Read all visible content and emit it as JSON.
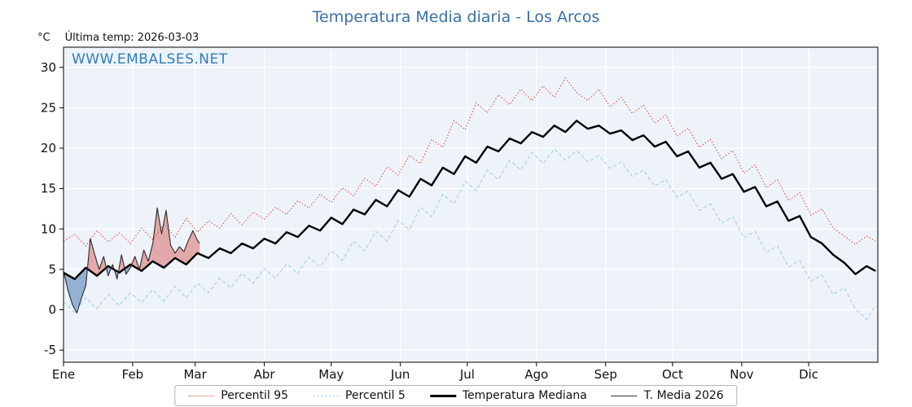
{
  "title": "Temperatura Media diaria - Los Arcos",
  "watermark": "WWW.EMBALSES.NET",
  "header": {
    "unit_label": "°C",
    "last_temp_label": "Última temp: 2026-03-03"
  },
  "chart_data": {
    "type": "line",
    "title": "Temperatura Media diaria - Los Arcos",
    "xlabel": "",
    "ylabel": "°C",
    "ylim": [
      -6.5,
      32.5
    ],
    "yticks": [
      -5,
      0,
      5,
      10,
      15,
      20,
      25,
      30
    ],
    "grid": true,
    "days_total": 365,
    "month_labels": [
      "Ene",
      "Feb",
      "Mar",
      "Abr",
      "May",
      "Jun",
      "Jul",
      "Ago",
      "Sep",
      "Oct",
      "Nov",
      "Dic"
    ],
    "month_start_days": [
      0,
      31,
      59,
      90,
      120,
      151,
      181,
      212,
      243,
      273,
      304,
      334
    ],
    "colors": {
      "p95": "#d9534f",
      "p5": "#a6d3e8",
      "median": "#000000",
      "t2026": "#2a2a2a",
      "fill_above": "rgba(217,106,106,0.55)",
      "fill_below": "rgba(100,140,190,0.65)",
      "plot_bg": "#eef3f9",
      "gridline": "#ffffff",
      "title_blue": "#3a6fa8",
      "watermark_blue": "#2e7ebd"
    },
    "series": [
      {
        "name": "Percentil 95",
        "style": "dotted",
        "width": 1.2,
        "points": [
          [
            0,
            8.5
          ],
          [
            5,
            9.3
          ],
          [
            10,
            7.9
          ],
          [
            15,
            9.8
          ],
          [
            20,
            8.4
          ],
          [
            25,
            9.5
          ],
          [
            30,
            8.2
          ],
          [
            35,
            10.1
          ],
          [
            40,
            8.7
          ],
          [
            45,
            10.6
          ],
          [
            50,
            9.0
          ],
          [
            55,
            11.3
          ],
          [
            60,
            9.6
          ],
          [
            65,
            11.0
          ],
          [
            70,
            10.1
          ],
          [
            75,
            11.9
          ],
          [
            80,
            10.5
          ],
          [
            85,
            12.1
          ],
          [
            90,
            11.2
          ],
          [
            95,
            12.7
          ],
          [
            100,
            11.8
          ],
          [
            105,
            13.5
          ],
          [
            110,
            12.6
          ],
          [
            115,
            14.3
          ],
          [
            120,
            13.3
          ],
          [
            125,
            15.1
          ],
          [
            130,
            14.1
          ],
          [
            135,
            16.3
          ],
          [
            140,
            15.3
          ],
          [
            145,
            17.7
          ],
          [
            150,
            16.7
          ],
          [
            155,
            19.1
          ],
          [
            160,
            18.1
          ],
          [
            165,
            21.1
          ],
          [
            170,
            20.1
          ],
          [
            175,
            23.4
          ],
          [
            180,
            22.3
          ],
          [
            185,
            25.6
          ],
          [
            190,
            24.4
          ],
          [
            195,
            26.6
          ],
          [
            200,
            25.4
          ],
          [
            205,
            27.3
          ],
          [
            210,
            25.9
          ],
          [
            215,
            27.7
          ],
          [
            220,
            26.3
          ],
          [
            225,
            28.7
          ],
          [
            230,
            26.9
          ],
          [
            235,
            25.9
          ],
          [
            240,
            27.3
          ],
          [
            245,
            25.1
          ],
          [
            250,
            26.3
          ],
          [
            255,
            24.3
          ],
          [
            260,
            25.3
          ],
          [
            265,
            23.1
          ],
          [
            270,
            24.1
          ],
          [
            275,
            21.5
          ],
          [
            280,
            22.5
          ],
          [
            285,
            20.1
          ],
          [
            290,
            21.1
          ],
          [
            295,
            18.7
          ],
          [
            300,
            19.7
          ],
          [
            305,
            16.9
          ],
          [
            310,
            17.9
          ],
          [
            315,
            15.1
          ],
          [
            320,
            16.1
          ],
          [
            325,
            13.5
          ],
          [
            330,
            14.5
          ],
          [
            335,
            11.7
          ],
          [
            340,
            12.5
          ],
          [
            345,
            10.1
          ],
          [
            350,
            9.1
          ],
          [
            355,
            8.1
          ],
          [
            360,
            9.1
          ],
          [
            364,
            8.5
          ]
        ]
      },
      {
        "name": "Percentil 5",
        "style": "dashed",
        "width": 1.2,
        "points": [
          [
            0,
            1.0
          ],
          [
            5,
            -0.3
          ],
          [
            10,
            1.5
          ],
          [
            15,
            0.1
          ],
          [
            20,
            1.9
          ],
          [
            25,
            0.5
          ],
          [
            30,
            2.1
          ],
          [
            35,
            0.9
          ],
          [
            40,
            2.5
          ],
          [
            45,
            1.1
          ],
          [
            50,
            2.9
          ],
          [
            55,
            1.5
          ],
          [
            60,
            3.3
          ],
          [
            65,
            2.1
          ],
          [
            70,
            3.9
          ],
          [
            75,
            2.7
          ],
          [
            80,
            4.5
          ],
          [
            85,
            3.3
          ],
          [
            90,
            5.1
          ],
          [
            95,
            3.9
          ],
          [
            100,
            5.7
          ],
          [
            105,
            4.5
          ],
          [
            110,
            6.5
          ],
          [
            115,
            5.3
          ],
          [
            120,
            7.3
          ],
          [
            125,
            6.1
          ],
          [
            130,
            8.5
          ],
          [
            135,
            7.3
          ],
          [
            140,
            9.7
          ],
          [
            145,
            8.5
          ],
          [
            150,
            11.1
          ],
          [
            155,
            9.9
          ],
          [
            160,
            12.7
          ],
          [
            165,
            11.5
          ],
          [
            170,
            14.3
          ],
          [
            175,
            13.1
          ],
          [
            180,
            15.9
          ],
          [
            185,
            14.7
          ],
          [
            190,
            17.3
          ],
          [
            195,
            16.1
          ],
          [
            200,
            18.5
          ],
          [
            205,
            17.3
          ],
          [
            210,
            19.5
          ],
          [
            215,
            18.1
          ],
          [
            220,
            19.9
          ],
          [
            225,
            18.5
          ],
          [
            230,
            19.7
          ],
          [
            235,
            18.3
          ],
          [
            240,
            19.1
          ],
          [
            245,
            17.5
          ],
          [
            250,
            18.3
          ],
          [
            255,
            16.5
          ],
          [
            260,
            17.3
          ],
          [
            265,
            15.3
          ],
          [
            270,
            16.1
          ],
          [
            275,
            13.9
          ],
          [
            280,
            14.7
          ],
          [
            285,
            12.3
          ],
          [
            290,
            13.1
          ],
          [
            295,
            10.7
          ],
          [
            300,
            11.5
          ],
          [
            305,
            8.9
          ],
          [
            310,
            9.7
          ],
          [
            315,
            7.1
          ],
          [
            320,
            7.9
          ],
          [
            325,
            5.3
          ],
          [
            330,
            6.1
          ],
          [
            335,
            3.5
          ],
          [
            340,
            4.3
          ],
          [
            345,
            1.9
          ],
          [
            350,
            2.7
          ],
          [
            355,
            0.1
          ],
          [
            360,
            -1.2
          ],
          [
            364,
            0.5
          ]
        ]
      },
      {
        "name": "Temperatura Mediana",
        "style": "solid",
        "width": 2.4,
        "points": [
          [
            0,
            4.6
          ],
          [
            5,
            3.8
          ],
          [
            10,
            5.2
          ],
          [
            15,
            4.2
          ],
          [
            20,
            5.4
          ],
          [
            25,
            4.6
          ],
          [
            30,
            5.6
          ],
          [
            35,
            4.8
          ],
          [
            40,
            6.0
          ],
          [
            45,
            5.2
          ],
          [
            50,
            6.4
          ],
          [
            55,
            5.6
          ],
          [
            60,
            7.0
          ],
          [
            65,
            6.4
          ],
          [
            70,
            7.6
          ],
          [
            75,
            7.0
          ],
          [
            80,
            8.2
          ],
          [
            85,
            7.6
          ],
          [
            90,
            8.8
          ],
          [
            95,
            8.2
          ],
          [
            100,
            9.6
          ],
          [
            105,
            9.0
          ],
          [
            110,
            10.4
          ],
          [
            115,
            9.8
          ],
          [
            120,
            11.4
          ],
          [
            125,
            10.6
          ],
          [
            130,
            12.4
          ],
          [
            135,
            11.8
          ],
          [
            140,
            13.6
          ],
          [
            145,
            12.8
          ],
          [
            150,
            14.8
          ],
          [
            155,
            14.0
          ],
          [
            160,
            16.2
          ],
          [
            165,
            15.4
          ],
          [
            170,
            17.6
          ],
          [
            175,
            16.8
          ],
          [
            180,
            19.0
          ],
          [
            185,
            18.2
          ],
          [
            190,
            20.2
          ],
          [
            195,
            19.6
          ],
          [
            200,
            21.2
          ],
          [
            205,
            20.6
          ],
          [
            210,
            22.0
          ],
          [
            215,
            21.4
          ],
          [
            220,
            22.8
          ],
          [
            225,
            22.0
          ],
          [
            230,
            23.4
          ],
          [
            235,
            22.4
          ],
          [
            240,
            22.8
          ],
          [
            245,
            21.8
          ],
          [
            250,
            22.2
          ],
          [
            255,
            21.0
          ],
          [
            260,
            21.6
          ],
          [
            265,
            20.2
          ],
          [
            270,
            20.8
          ],
          [
            275,
            19.0
          ],
          [
            280,
            19.6
          ],
          [
            285,
            17.6
          ],
          [
            290,
            18.2
          ],
          [
            295,
            16.2
          ],
          [
            300,
            16.8
          ],
          [
            305,
            14.6
          ],
          [
            310,
            15.2
          ],
          [
            315,
            12.8
          ],
          [
            320,
            13.4
          ],
          [
            325,
            11.0
          ],
          [
            330,
            11.6
          ],
          [
            335,
            9.0
          ],
          [
            340,
            8.2
          ],
          [
            345,
            6.8
          ],
          [
            350,
            5.8
          ],
          [
            355,
            4.4
          ],
          [
            360,
            5.4
          ],
          [
            364,
            4.8
          ]
        ]
      },
      {
        "name": "T. Media 2026",
        "style": "solid",
        "width": 1.1,
        "points": [
          [
            0,
            4.8
          ],
          [
            2,
            2.4
          ],
          [
            4,
            0.6
          ],
          [
            6,
            -0.4
          ],
          [
            8,
            1.4
          ],
          [
            10,
            3.0
          ],
          [
            12,
            8.8
          ],
          [
            14,
            6.8
          ],
          [
            16,
            5.0
          ],
          [
            18,
            6.6
          ],
          [
            20,
            4.2
          ],
          [
            22,
            5.6
          ],
          [
            24,
            3.8
          ],
          [
            26,
            6.8
          ],
          [
            28,
            4.4
          ],
          [
            30,
            5.2
          ],
          [
            32,
            6.6
          ],
          [
            34,
            5.0
          ],
          [
            36,
            7.4
          ],
          [
            38,
            6.0
          ],
          [
            40,
            8.2
          ],
          [
            42,
            12.6
          ],
          [
            44,
            9.4
          ],
          [
            46,
            12.3
          ],
          [
            48,
            8.0
          ],
          [
            50,
            7.0
          ],
          [
            52,
            7.8
          ],
          [
            54,
            7.2
          ],
          [
            56,
            8.6
          ],
          [
            58,
            9.8
          ],
          [
            60,
            8.6
          ],
          [
            61,
            8.2
          ]
        ]
      }
    ],
    "legend": {
      "position": "bottom",
      "entries": [
        "Percentil 95",
        "Percentil 5",
        "Temperatura Mediana",
        "T. Media 2026"
      ]
    }
  }
}
